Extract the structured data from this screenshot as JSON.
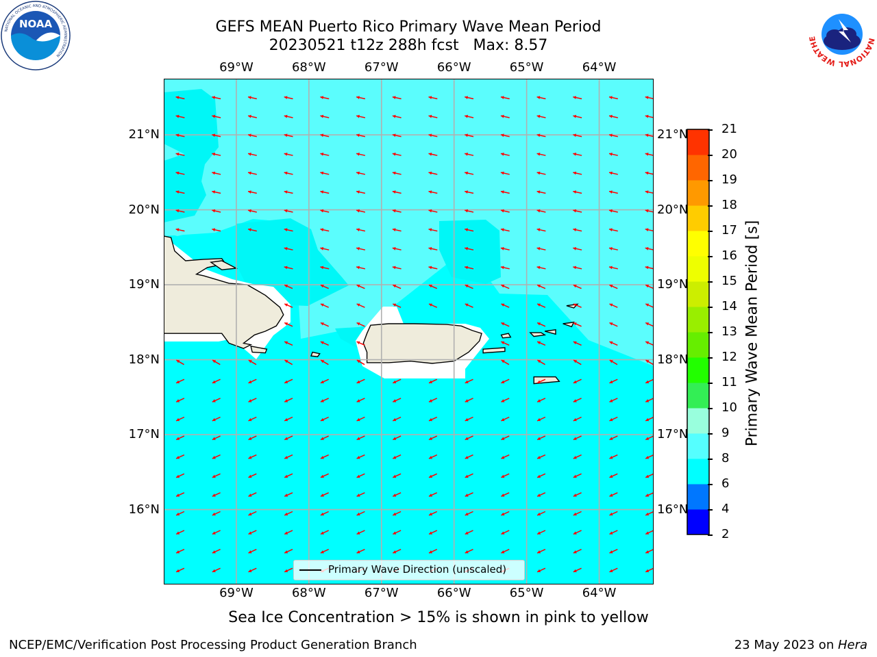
{
  "title": {
    "line1": "GEFS MEAN Puerto Rico Primary Wave Mean Period",
    "line2": "20230521 t12z 288h fcst   Max: 8.57"
  },
  "logos": {
    "left": {
      "name": "NOAA",
      "ring_text": "NATIONAL OCEANIC AND ATMOSPHERIC ADMINISTRATION",
      "bottom_text": "U.S. DEPARTMENT OF COMMERCE"
    },
    "right": {
      "name": "NATIONAL WEATHER SERVICE"
    }
  },
  "map": {
    "lon_labels": [
      "69°W",
      "68°W",
      "67°W",
      "66°W",
      "65°W",
      "64°W"
    ],
    "lat_labels": [
      "21°N",
      "20°N",
      "19°N",
      "18°N",
      "17°N",
      "16°N"
    ],
    "lon_range": [
      -70.0,
      -63.25
    ],
    "lat_range": [
      15.0,
      21.75
    ],
    "grid": true,
    "land_color": "#efecdc",
    "vector_color": "#ff0000",
    "legend_text": "Primary Wave Direction (unscaled)"
  },
  "colorbar": {
    "label": "Primary Wave Mean Period [s]",
    "ticks": [
      "2",
      "4",
      "6",
      "8",
      "9",
      "10",
      "11",
      "12",
      "13",
      "14",
      "15",
      "16",
      "17",
      "18",
      "19",
      "20",
      "21"
    ],
    "levels": [
      2,
      4,
      6,
      8,
      9,
      10,
      11,
      12,
      13,
      14,
      15,
      16,
      17,
      18,
      19,
      20,
      21
    ],
    "colors": [
      "#0000ff",
      "#0077ff",
      "#00ffff",
      "#55ffff",
      "#99ffdd",
      "#33ee55",
      "#22ff00",
      "#66ee00",
      "#99ee00",
      "#ccee00",
      "#eeff00",
      "#ffff00",
      "#ffcc00",
      "#ff9900",
      "#ff6600",
      "#ff3300",
      "#ff0000"
    ]
  },
  "note": "Sea Ice Concentration > 15% is shown in pink to yellow",
  "footer": {
    "left": "NCEP/EMC/Verification Post Processing Product Generation Branch",
    "right_date": "23 May 2023 on ",
    "right_host": "Hera"
  }
}
